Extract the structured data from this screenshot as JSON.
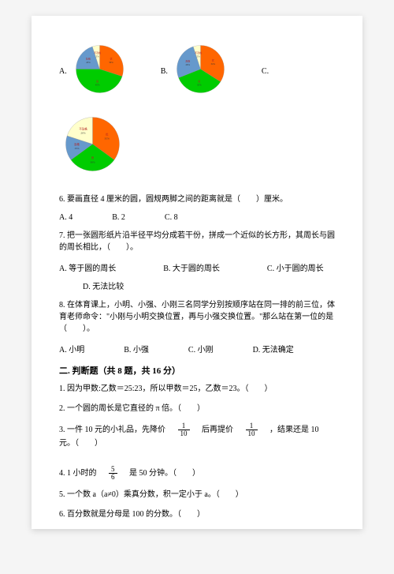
{
  "chartA": {
    "label": "A.",
    "slices": [
      {
        "name": "优",
        "pct": "30%",
        "value": 30,
        "color": "#ff6600"
      },
      {
        "name": "良",
        "pct": "45%",
        "value": 45,
        "color": "#00cc00"
      },
      {
        "name": "及格",
        "pct": "20%",
        "value": 20,
        "color": "#6699cc"
      },
      {
        "name": "不及格",
        "pct": "5%",
        "value": 5,
        "color": "#ffffcc"
      }
    ]
  },
  "chartB": {
    "label": "B.",
    "slices": [
      {
        "name": "优",
        "pct": "34%",
        "value": 34,
        "color": "#ff6600"
      },
      {
        "name": "良",
        "pct": "35%",
        "value": 35,
        "color": "#00cc00"
      },
      {
        "name": "及格",
        "pct": "26%",
        "value": 26,
        "color": "#6699cc"
      },
      {
        "name": "不及格",
        "pct": "5%",
        "value": 5,
        "color": "#ffffcc"
      }
    ]
  },
  "chartC_label": "C.",
  "chartD": {
    "slices": [
      {
        "name": "优",
        "pct": "35%",
        "value": 35,
        "color": "#ff6600"
      },
      {
        "name": "良",
        "pct": "30%",
        "value": 30,
        "color": "#00cc00"
      },
      {
        "name": "及格",
        "pct": "15%",
        "value": 15,
        "color": "#6699cc"
      },
      {
        "name": "不及格",
        "pct": "20%",
        "value": 20,
        "color": "#ffffcc"
      }
    ]
  },
  "q6": {
    "text": "6. 要画直径 4 厘米的圆，圆规两脚之间的距离就是（　　）厘米。",
    "opts": {
      "a": "A. 4",
      "b": "B. 2",
      "c": "C. 8"
    }
  },
  "q7": {
    "text": "7. 把一张圆形纸片沿半径平均分成若干份，拼成一个近似的长方形，其周长与圆的周长相比，（　　）。",
    "opts": {
      "a": "A. 等于圆的周长",
      "b": "B. 大于圆的周长",
      "c": "C. 小于圆的周长",
      "d": "D. 无法比较"
    }
  },
  "q8": {
    "text": "8. 在体育课上，小明、小强、小刚三名同学分别按顺序站在同一排的前三位，体育老师命令：\"小刚与小明交换位置，再与小强交换位置。\"那么站在第一位的是（　　）。",
    "opts": {
      "a": "A. 小明",
      "b": "B. 小强",
      "c": "C. 小刚",
      "d": "D. 无法确定"
    }
  },
  "section2_title": "二. 判断题（共 8 题，共 16 分）",
  "j1": "1. 因为甲数:乙数＝25:23，所以甲数＝25，乙数＝23。（　　）",
  "j2": "2. 一个圆的周长是它直径的 π 倍。（　　）",
  "j3_pre": "3. 一件 10 元的小礼品，先降价　",
  "j3_frac1": {
    "num": "1",
    "den": "10"
  },
  "j3_mid": "　后再提价　",
  "j3_frac2": {
    "num": "1",
    "den": "10"
  },
  "j3_post": "　，结果还是 10 元。（　　）",
  "j4_pre": "4. 1 小时的　",
  "j4_frac": {
    "num": "5",
    "den": "6"
  },
  "j4_post": "　是 50 分钟。（　　）",
  "j5": "5. 一个数 a（a≠0）乘真分数，积一定小于 a。（　　）",
  "j6": "6. 百分数就是分母是 100 的分数。（　　）"
}
